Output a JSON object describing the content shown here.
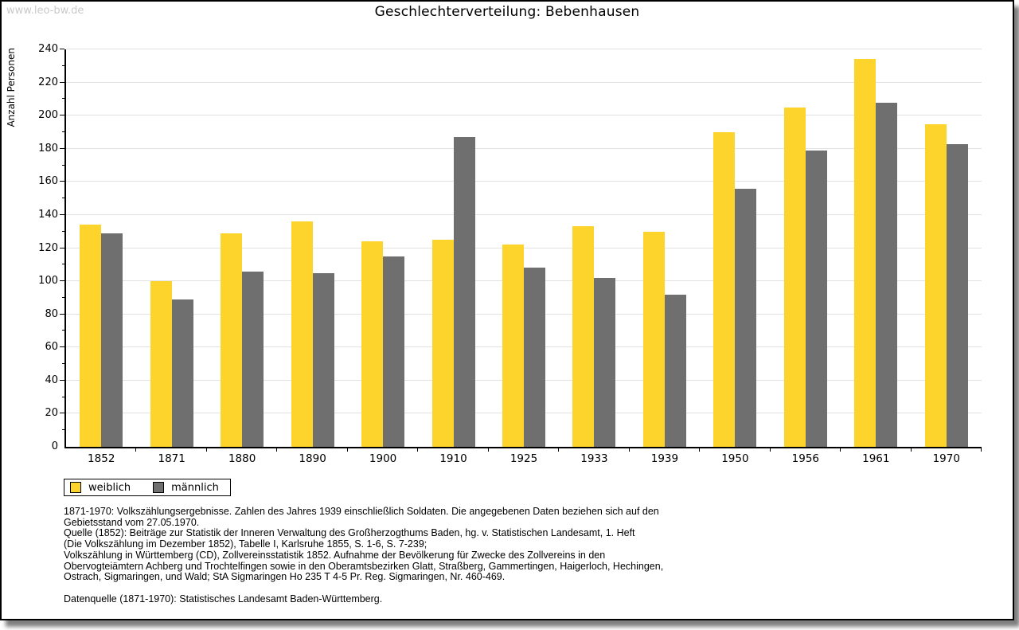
{
  "watermark": "www.leo-bw.de",
  "title": "Geschlechterverteilung: Bebenhausen",
  "chart_data": {
    "type": "bar",
    "title": "Geschlechterverteilung: Bebenhausen",
    "xlabel": "",
    "ylabel": "Anzahl Personen",
    "ylim": [
      0,
      240
    ],
    "ytick_major_step": 20,
    "ytick_minor_step": 10,
    "grid": true,
    "legend_position": "bottom-left",
    "categories": [
      "1852",
      "1871",
      "1880",
      "1890",
      "1900",
      "1910",
      "1925",
      "1933",
      "1939",
      "1950",
      "1956",
      "1961",
      "1970"
    ],
    "series": [
      {
        "name": "weiblich",
        "color": "#fcd42c",
        "values": [
          134,
          100,
          129,
          136,
          124,
          125,
          122,
          133,
          130,
          190,
          205,
          234,
          195
        ]
      },
      {
        "name": "männlich",
        "color": "#6f6f6f",
        "values": [
          129,
          89,
          106,
          105,
          115,
          187,
          108,
          102,
          92,
          156,
          179,
          208,
          183
        ]
      }
    ]
  },
  "legend": {
    "items": [
      {
        "label": "weiblich",
        "color": "#fcd42c"
      },
      {
        "label": "männlich",
        "color": "#6f6f6f"
      }
    ]
  },
  "colors": {
    "female_bar": "#fcd42c",
    "male_bar": "#6f6f6f",
    "gridline": "#e2e2e2",
    "watermark": "#c9c9c9",
    "axis": "#000000"
  },
  "footnotes": {
    "lines": [
      "1871-1970: Volkszählungsergebnisse. Zahlen des Jahres 1939 einschließlich Soldaten. Die angegebenen Daten beziehen sich auf den",
      "Gebietsstand vom 27.05.1970.",
      "Quelle (1852): Beiträge zur Statistik der Inneren Verwaltung des Großherzogthums Baden, hg. v. Statistischen Landesamt, 1. Heft",
      "(Die Volkszählung im Dezember 1852), Tabelle I, Karlsruhe 1855, S. 1-6, S. 7-239;",
      "Volkszählung in Württemberg (CD), Zollvereinsstatistik 1852. Aufnahme der Bevölkerung für Zwecke des Zollvereins in den",
      "Obervogteiämtern Achberg und Trochtelfingen sowie in den Oberamtsbezirken Glatt, Straßberg, Gammertingen, Haigerloch, Hechingen,",
      "Ostrach, Sigmaringen, und Wald; StA Sigmaringen Ho 235 T 4-5 Pr. Reg. Sigmaringen, Nr. 460-469."
    ],
    "datasource": "Datenquelle (1871-1970): Statistisches Landesamt Baden-Württemberg."
  }
}
